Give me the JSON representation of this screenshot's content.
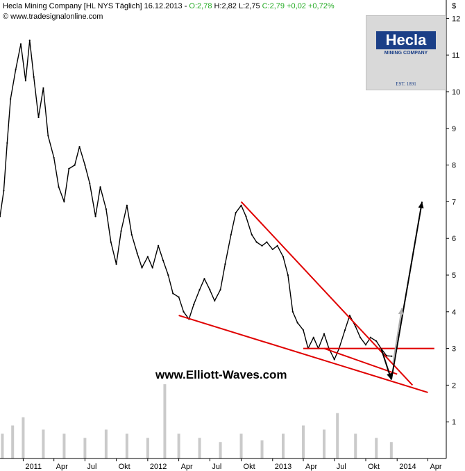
{
  "header": {
    "title": "Hecla Mining Company [HL NYS  Täglich] 16.12.2013 -",
    "ohlc": "O:2,78 H:2,82 L:2,75 C:2,79 +0,02 +0,72%",
    "ohlc_prefix": "O:2,78",
    "ohlc_mid": " H:2,82 L:2,75 ",
    "ohlc_suffix": "C:2,79 +0,02 +0,72%",
    "source": "© www.tradesignalonline.com"
  },
  "logo": {
    "name": "Hecla",
    "subtitle": "MINING COMPANY",
    "established": "EST. 1891"
  },
  "watermark": "www.Elliott-Waves.com",
  "colors": {
    "price": "#000000",
    "trendline": "#e00000",
    "projection": "#000000",
    "projection_alt": "#b0b0b0",
    "volume": "#b8b8b8",
    "positive_change": "#22aa22",
    "logo_blue": "#1b3f87"
  },
  "chart_data": {
    "type": "line",
    "title": "Hecla Mining Company [HL NYS  Täglich]",
    "y_axis_label": "$",
    "ylim": [
      0,
      12.5
    ],
    "y_ticks": [
      1,
      2,
      3,
      4,
      5,
      6,
      7,
      8,
      9,
      10,
      11,
      12
    ],
    "y_tick_labels": [
      "1",
      "2",
      "3",
      "4",
      "5",
      "6",
      "7",
      "8",
      "9",
      "10",
      "11",
      "12"
    ],
    "x_range": [
      "2010-10-25",
      "2014-05-25"
    ],
    "x_ticks": [
      {
        "label": "2011",
        "date": "2011-01-01"
      },
      {
        "label": "Apr",
        "date": "2011-04-01"
      },
      {
        "label": "Jul",
        "date": "2011-07-01"
      },
      {
        "label": "Okt",
        "date": "2011-10-01"
      },
      {
        "label": "2012",
        "date": "2012-01-01"
      },
      {
        "label": "Apr",
        "date": "2012-04-01"
      },
      {
        "label": "Jul",
        "date": "2012-07-01"
      },
      {
        "label": "Okt",
        "date": "2012-10-01"
      },
      {
        "label": "2013",
        "date": "2013-01-01"
      },
      {
        "label": "Apr",
        "date": "2013-04-01"
      },
      {
        "label": "Jul",
        "date": "2013-07-01"
      },
      {
        "label": "Okt",
        "date": "2013-10-01"
      },
      {
        "label": "2014",
        "date": "2014-01-01"
      },
      {
        "label": "Apr",
        "date": "2014-04-01"
      }
    ],
    "series": [
      {
        "name": "HL",
        "points": [
          [
            "2010-10-25",
            6.6
          ],
          [
            "2010-11-05",
            7.3
          ],
          [
            "2010-11-15",
            8.6
          ],
          [
            "2010-11-25",
            9.8
          ],
          [
            "2010-12-10",
            10.6
          ],
          [
            "2010-12-25",
            11.3
          ],
          [
            "2011-01-08",
            10.3
          ],
          [
            "2011-01-20",
            11.4
          ],
          [
            "2011-02-01",
            10.4
          ],
          [
            "2011-02-15",
            9.3
          ],
          [
            "2011-03-01",
            10.1
          ],
          [
            "2011-03-15",
            8.8
          ],
          [
            "2011-04-01",
            8.2
          ],
          [
            "2011-04-15",
            7.4
          ],
          [
            "2011-05-01",
            7.0
          ],
          [
            "2011-05-15",
            7.9
          ],
          [
            "2011-06-01",
            8.0
          ],
          [
            "2011-06-15",
            8.5
          ],
          [
            "2011-07-01",
            8.0
          ],
          [
            "2011-07-15",
            7.5
          ],
          [
            "2011-08-01",
            6.6
          ],
          [
            "2011-08-15",
            7.4
          ],
          [
            "2011-09-01",
            6.8
          ],
          [
            "2011-09-15",
            5.9
          ],
          [
            "2011-10-01",
            5.3
          ],
          [
            "2011-10-15",
            6.2
          ],
          [
            "2011-11-01",
            6.9
          ],
          [
            "2011-11-15",
            6.1
          ],
          [
            "2011-12-01",
            5.6
          ],
          [
            "2011-12-15",
            5.2
          ],
          [
            "2012-01-01",
            5.5
          ],
          [
            "2012-01-15",
            5.2
          ],
          [
            "2012-02-01",
            5.8
          ],
          [
            "2012-02-15",
            5.4
          ],
          [
            "2012-03-01",
            5.0
          ],
          [
            "2012-03-15",
            4.5
          ],
          [
            "2012-04-01",
            4.4
          ],
          [
            "2012-04-15",
            4.0
          ],
          [
            "2012-05-01",
            3.8
          ],
          [
            "2012-05-15",
            4.2
          ],
          [
            "2012-06-01",
            4.6
          ],
          [
            "2012-06-15",
            4.9
          ],
          [
            "2012-07-01",
            4.6
          ],
          [
            "2012-07-15",
            4.3
          ],
          [
            "2012-08-01",
            4.6
          ],
          [
            "2012-08-15",
            5.3
          ],
          [
            "2012-09-01",
            6.1
          ],
          [
            "2012-09-15",
            6.7
          ],
          [
            "2012-10-01",
            6.9
          ],
          [
            "2012-10-15",
            6.6
          ],
          [
            "2012-11-01",
            6.1
          ],
          [
            "2012-11-15",
            5.9
          ],
          [
            "2012-12-01",
            5.8
          ],
          [
            "2012-12-15",
            5.9
          ],
          [
            "2013-01-01",
            5.7
          ],
          [
            "2013-01-15",
            5.8
          ],
          [
            "2013-02-01",
            5.5
          ],
          [
            "2013-02-15",
            5.0
          ],
          [
            "2013-03-01",
            4.0
          ],
          [
            "2013-03-15",
            3.7
          ],
          [
            "2013-04-01",
            3.5
          ],
          [
            "2013-04-15",
            3.0
          ],
          [
            "2013-05-01",
            3.3
          ],
          [
            "2013-05-15",
            3.0
          ],
          [
            "2013-06-01",
            3.4
          ],
          [
            "2013-06-15",
            3.0
          ],
          [
            "2013-07-01",
            2.7
          ],
          [
            "2013-07-15",
            3.0
          ],
          [
            "2013-08-01",
            3.5
          ],
          [
            "2013-08-15",
            3.9
          ],
          [
            "2013-09-01",
            3.6
          ],
          [
            "2013-09-15",
            3.3
          ],
          [
            "2013-10-01",
            3.1
          ],
          [
            "2013-10-15",
            3.3
          ],
          [
            "2013-11-01",
            3.2
          ],
          [
            "2013-11-15",
            3.0
          ],
          [
            "2013-12-01",
            2.8
          ],
          [
            "2013-12-16",
            2.79
          ]
        ]
      }
    ],
    "annotations": {
      "trendlines": [
        {
          "name": "upper-wedge-line",
          "from": [
            "2012-10-01",
            7.0
          ],
          "to": [
            "2014-02-15",
            2.0
          ]
        },
        {
          "name": "lower-wedge-line",
          "from": [
            "2012-04-01",
            3.9
          ],
          "to": [
            "2014-04-01",
            1.8
          ]
        },
        {
          "name": "horizontal-resistance-line",
          "from": [
            "2013-04-01",
            3.0
          ],
          "to": [
            "2014-04-20",
            3.0
          ]
        },
        {
          "name": "inner-wedge-line",
          "from": [
            "2013-06-01",
            3.0
          ],
          "to": [
            "2014-01-01",
            2.3
          ]
        }
      ],
      "arrows": [
        {
          "name": "projection-down-arrow",
          "from": [
            "2013-11-15",
            3.0
          ],
          "to": [
            "2013-12-15",
            2.15
          ],
          "style": "black"
        },
        {
          "name": "projection-up-arrow",
          "from": [
            "2013-12-15",
            2.15
          ],
          "to": [
            "2014-03-15",
            7.0
          ],
          "style": "black"
        },
        {
          "name": "alt-projection-arrow",
          "from": [
            "2013-12-20",
            2.6
          ],
          "to": [
            "2014-01-15",
            4.1
          ],
          "style": "gray"
        }
      ]
    },
    "volume": {
      "max_share_of_plot": 0.18,
      "points": [
        [
          "2010-11-01",
          0.3
        ],
        [
          "2010-12-01",
          0.4
        ],
        [
          "2011-01-01",
          0.5
        ],
        [
          "2011-03-01",
          0.35
        ],
        [
          "2011-05-01",
          0.3
        ],
        [
          "2011-07-01",
          0.25
        ],
        [
          "2011-09-01",
          0.35
        ],
        [
          "2011-11-01",
          0.3
        ],
        [
          "2012-01-01",
          0.25
        ],
        [
          "2012-02-20",
          0.9
        ],
        [
          "2012-04-01",
          0.3
        ],
        [
          "2012-06-01",
          0.25
        ],
        [
          "2012-08-01",
          0.2
        ],
        [
          "2012-10-01",
          0.3
        ],
        [
          "2012-12-01",
          0.22
        ],
        [
          "2013-02-01",
          0.3
        ],
        [
          "2013-04-01",
          0.4
        ],
        [
          "2013-06-01",
          0.35
        ],
        [
          "2013-07-10",
          0.55
        ],
        [
          "2013-09-01",
          0.3
        ],
        [
          "2013-11-01",
          0.25
        ],
        [
          "2013-12-15",
          0.2
        ]
      ]
    }
  }
}
